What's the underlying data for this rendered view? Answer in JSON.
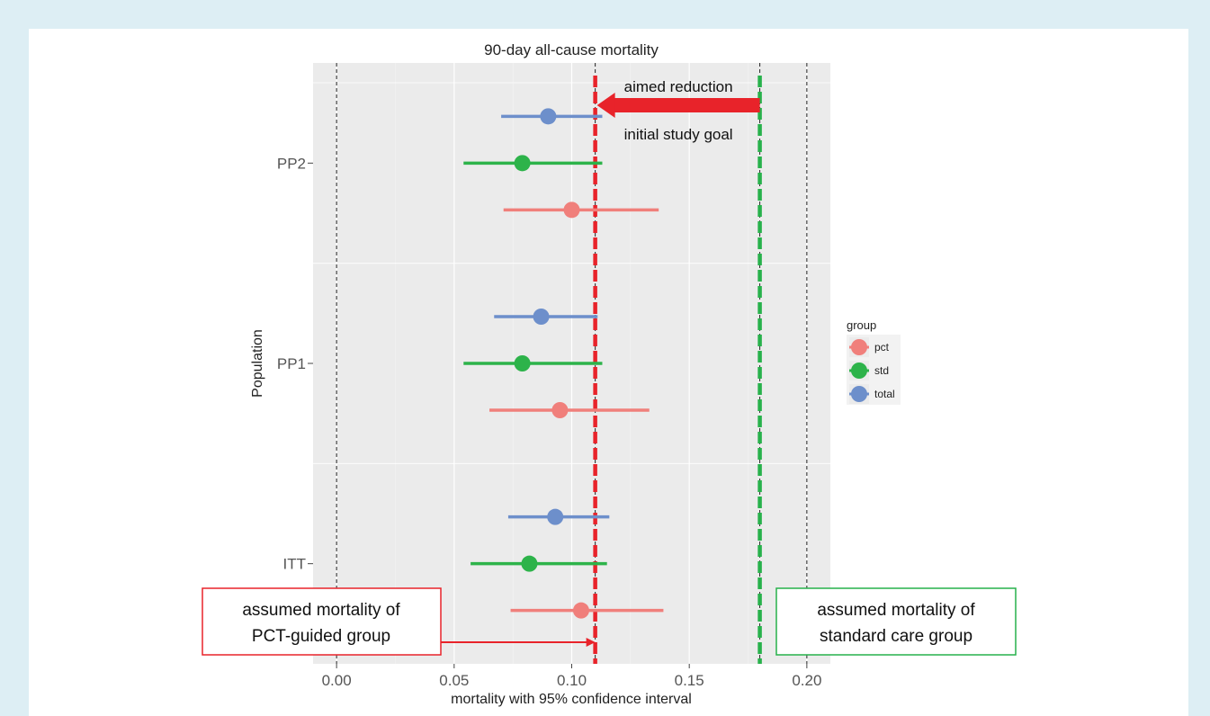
{
  "chart_data": {
    "type": "scatter",
    "title": "90-day all-cause mortality",
    "xlabel": "mortality with 95% confidence interval",
    "ylabel": "Population",
    "xlim": [
      -0.01,
      0.21
    ],
    "x_ticks": [
      0.0,
      0.05,
      0.1,
      0.15,
      0.2
    ],
    "x_tick_labels": [
      "0.00",
      "0.05",
      "0.10",
      "0.15",
      "0.20"
    ],
    "categories": [
      "ITT",
      "PP1",
      "PP2"
    ],
    "grid": true,
    "legend": {
      "title": "group",
      "position": "right"
    },
    "series": [
      {
        "name": "pct",
        "color": "#f07f7b",
        "points": [
          {
            "category": "ITT",
            "estimate": 0.104,
            "lower": 0.074,
            "upper": 0.139
          },
          {
            "category": "PP1",
            "estimate": 0.095,
            "lower": 0.065,
            "upper": 0.133
          },
          {
            "category": "PP2",
            "estimate": 0.1,
            "lower": 0.071,
            "upper": 0.137
          }
        ]
      },
      {
        "name": "std",
        "color": "#2db34a",
        "points": [
          {
            "category": "ITT",
            "estimate": 0.082,
            "lower": 0.057,
            "upper": 0.115
          },
          {
            "category": "PP1",
            "estimate": 0.079,
            "lower": 0.054,
            "upper": 0.113
          },
          {
            "category": "PP2",
            "estimate": 0.079,
            "lower": 0.054,
            "upper": 0.113
          }
        ]
      },
      {
        "name": "total",
        "color": "#6d8fcb",
        "points": [
          {
            "category": "ITT",
            "estimate": 0.093,
            "lower": 0.073,
            "upper": 0.116
          },
          {
            "category": "PP1",
            "estimate": 0.087,
            "lower": 0.067,
            "upper": 0.111
          },
          {
            "category": "PP2",
            "estimate": 0.09,
            "lower": 0.07,
            "upper": 0.113
          }
        ]
      }
    ],
    "reference_lines": [
      {
        "x": 0.0,
        "style": "thin-dashed",
        "color": "#222222"
      },
      {
        "x": 0.11,
        "style": "thin-dashed",
        "color": "#222222"
      },
      {
        "x": 0.18,
        "style": "thin-dashed",
        "color": "#222222"
      },
      {
        "x": 0.2,
        "style": "thin-dashed",
        "color": "#222222"
      },
      {
        "x": 0.11,
        "style": "thick-dashed",
        "color": "#e8232a"
      },
      {
        "x": 0.18,
        "style": "thick-dashed",
        "color": "#27b14b"
      }
    ],
    "annotations": {
      "aimed_reduction": "aimed reduction",
      "initial_study_goal": "initial study goal",
      "pct_box": [
        "assumed mortality of",
        "PCT-guided group"
      ],
      "std_box": [
        "assumed mortality of",
        "standard care group"
      ]
    },
    "annotation_colors": {
      "red": "#e8232a",
      "green": "#27b14b"
    }
  }
}
